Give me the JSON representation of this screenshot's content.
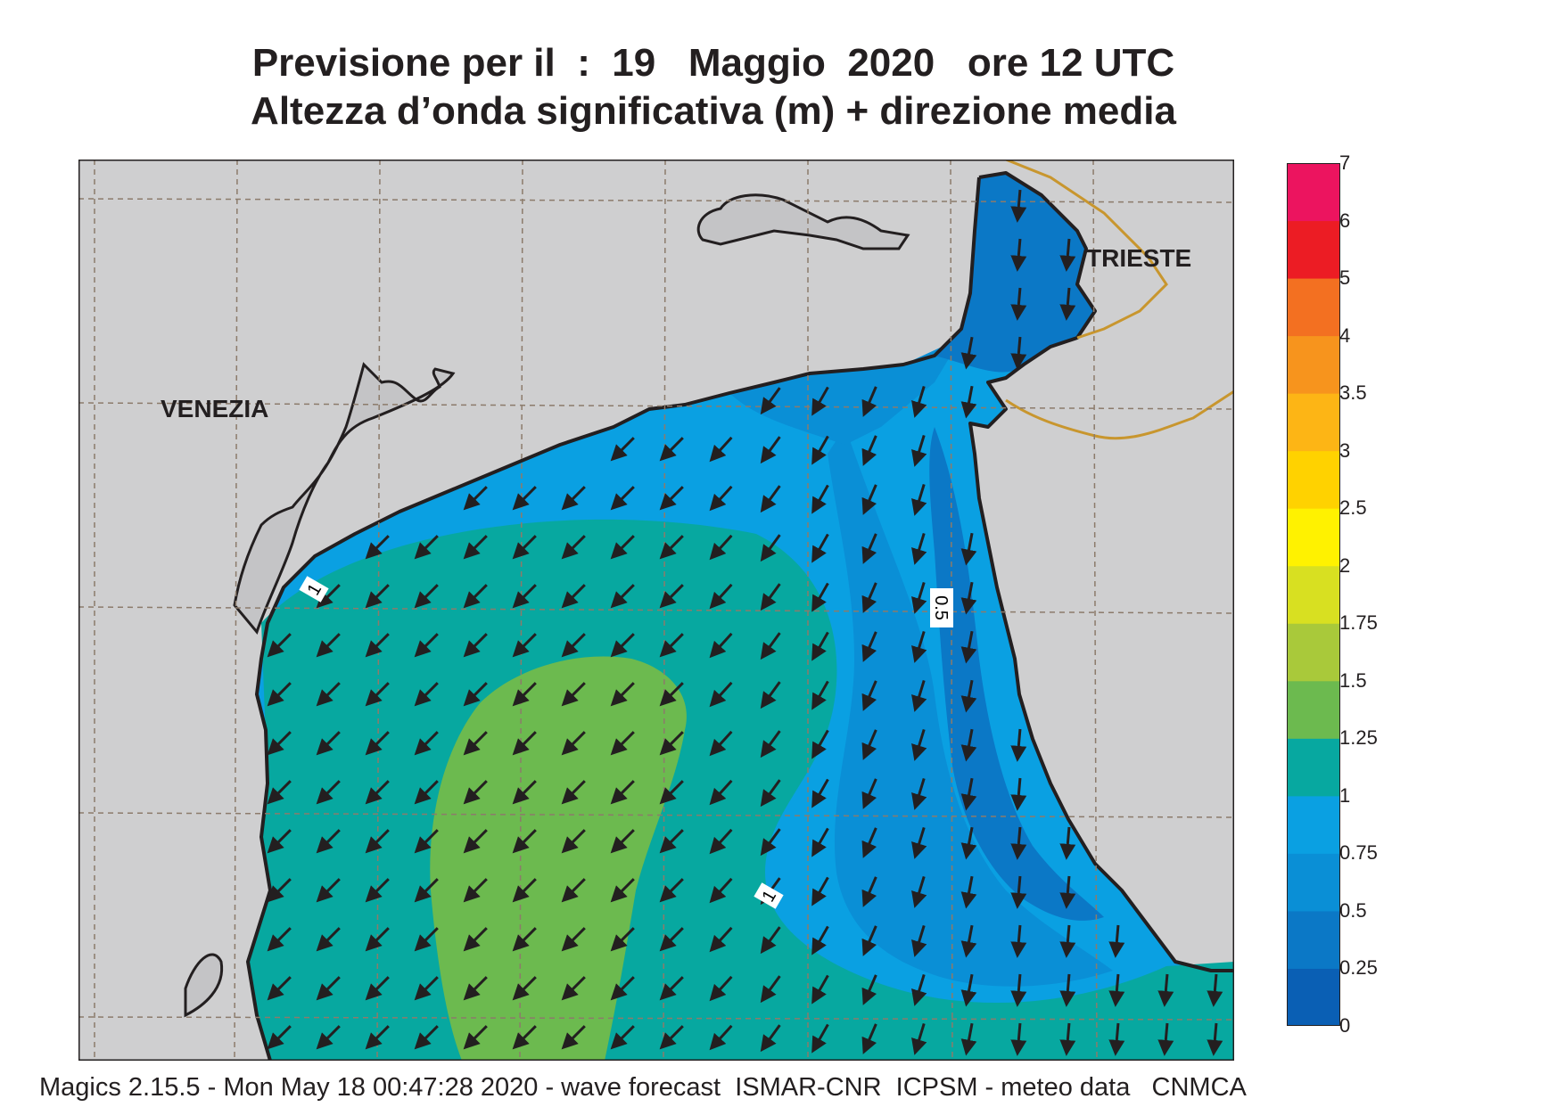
{
  "header": {
    "line1": "Previsione per il  :  19   Maggio  2020   ore 12 UTC",
    "line2": "Altezza d’onda significativa (m) + direzione media"
  },
  "map": {
    "cities": [
      {
        "id": "venezia",
        "name": "VENEZIA"
      },
      {
        "id": "trieste",
        "name": "TRIESTE"
      }
    ],
    "contour_labels": [
      "1",
      "0.5",
      "1"
    ],
    "arrow_icon": "wave-direction-arrow",
    "colors": {
      "land": "#cfcfd0",
      "lagoon_land": "#c4c4c6",
      "coast": "#231f20",
      "border": "#c8962e",
      "grid": "#8c7b6b"
    }
  },
  "legend": {
    "title": "",
    "bins": [
      {
        "from": 0,
        "to": 0.25,
        "color": "#0a5fb4"
      },
      {
        "from": 0.25,
        "to": 0.5,
        "color": "#0b78c6"
      },
      {
        "from": 0.5,
        "to": 0.75,
        "color": "#0a8fd6"
      },
      {
        "from": 0.75,
        "to": 1,
        "color": "#0aa0e2"
      },
      {
        "from": 1,
        "to": 1.25,
        "color": "#07a8a0"
      },
      {
        "from": 1.25,
        "to": 1.5,
        "color": "#6cba4f"
      },
      {
        "from": 1.5,
        "to": 1.75,
        "color": "#a9c93a"
      },
      {
        "from": 1.75,
        "to": 2,
        "color": "#d8e021"
      },
      {
        "from": 2,
        "to": 2.5,
        "color": "#fff200"
      },
      {
        "from": 2.5,
        "to": 3,
        "color": "#ffd200"
      },
      {
        "from": 3,
        "to": 3.5,
        "color": "#fdb515"
      },
      {
        "from": 3.5,
        "to": 4,
        "color": "#f7941d"
      },
      {
        "from": 4,
        "to": 5,
        "color": "#f37021"
      },
      {
        "from": 5,
        "to": 6,
        "color": "#ec1c24"
      },
      {
        "from": 6,
        "to": 7,
        "color": "#ec145f"
      }
    ],
    "tick_labels": [
      "0",
      "0.25",
      "0.5",
      "0.75",
      "1",
      "1.25",
      "1.5",
      "1.75",
      "2",
      "2.5",
      "3",
      "3.5",
      "4",
      "5",
      "6",
      "7"
    ]
  },
  "footer": {
    "text": "Magics 2.15.5 - Mon May 18 00:47:28 2020 - wave forecast  ISMAR-CNR  ICPSM - meteo data   CNMCA"
  }
}
